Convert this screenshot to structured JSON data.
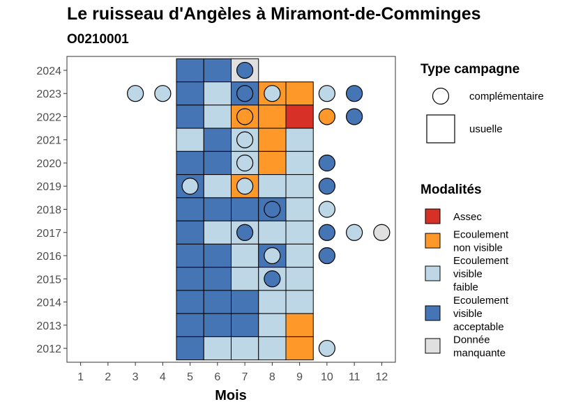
{
  "chart_data": {
    "type": "heatmap",
    "title": "Le ruisseau d'Angèles à Miramont-de-Comminges",
    "subtitle": "O0210001",
    "xlabel": "Mois",
    "ylabel": "",
    "x_ticks": [
      1,
      2,
      3,
      4,
      5,
      6,
      7,
      8,
      9,
      10,
      11,
      12
    ],
    "y_ticks": [
      2024,
      2023,
      2022,
      2021,
      2020,
      2019,
      2018,
      2017,
      2016,
      2015,
      2014,
      2013,
      2012
    ],
    "xlim": [
      0.5,
      12.5
    ],
    "ylim": [
      2011.4,
      2024.6
    ],
    "grid": false,
    "legend_position": "right",
    "categories": {
      "assec": {
        "label": "Assec",
        "color": "#D73027"
      },
      "nonvis": {
        "label": "Ecoulement non visible",
        "color": "#FE9929"
      },
      "faible": {
        "label": "Ecoulement visible faible",
        "color": "#BDD7E7"
      },
      "accept": {
        "label": "Ecoulement visible acceptable",
        "color": "#4575B4"
      },
      "manq": {
        "label": "Donnée manquante",
        "color": "#E0E0E0"
      }
    },
    "legend_campagne": {
      "title": "Type campagne",
      "items": [
        {
          "label": "complémentaire",
          "shape": "circle"
        },
        {
          "label": "usuelle",
          "shape": "square"
        }
      ]
    },
    "legend_modalites": {
      "title": "Modalités",
      "items": [
        {
          "key": "assec",
          "lines": [
            "Assec"
          ]
        },
        {
          "key": "nonvis",
          "lines": [
            "Ecoulement",
            "non visible"
          ]
        },
        {
          "key": "faible",
          "lines": [
            "Ecoulement",
            "visible",
            "faible"
          ]
        },
        {
          "key": "accept",
          "lines": [
            "Ecoulement",
            "visible",
            "acceptable"
          ]
        },
        {
          "key": "manq",
          "lines": [
            "Donnée",
            "manquante"
          ]
        }
      ]
    },
    "usuelle": [
      {
        "year": 2024,
        "month": 5,
        "c": "accept"
      },
      {
        "year": 2024,
        "month": 6,
        "c": "accept"
      },
      {
        "year": 2024,
        "month": 7,
        "c": "manq"
      },
      {
        "year": 2023,
        "month": 5,
        "c": "accept"
      },
      {
        "year": 2023,
        "month": 6,
        "c": "faible"
      },
      {
        "year": 2023,
        "month": 7,
        "c": "accept"
      },
      {
        "year": 2023,
        "month": 8,
        "c": "nonvis"
      },
      {
        "year": 2023,
        "month": 9,
        "c": "nonvis"
      },
      {
        "year": 2022,
        "month": 5,
        "c": "accept"
      },
      {
        "year": 2022,
        "month": 6,
        "c": "faible"
      },
      {
        "year": 2022,
        "month": 7,
        "c": "nonvis"
      },
      {
        "year": 2022,
        "month": 8,
        "c": "nonvis"
      },
      {
        "year": 2022,
        "month": 9,
        "c": "assec"
      },
      {
        "year": 2021,
        "month": 5,
        "c": "faible"
      },
      {
        "year": 2021,
        "month": 6,
        "c": "accept"
      },
      {
        "year": 2021,
        "month": 7,
        "c": "faible"
      },
      {
        "year": 2021,
        "month": 8,
        "c": "nonvis"
      },
      {
        "year": 2021,
        "month": 9,
        "c": "faible"
      },
      {
        "year": 2020,
        "month": 5,
        "c": "accept"
      },
      {
        "year": 2020,
        "month": 6,
        "c": "accept"
      },
      {
        "year": 2020,
        "month": 7,
        "c": "faible"
      },
      {
        "year": 2020,
        "month": 8,
        "c": "nonvis"
      },
      {
        "year": 2020,
        "month": 9,
        "c": "faible"
      },
      {
        "year": 2019,
        "month": 5,
        "c": "accept"
      },
      {
        "year": 2019,
        "month": 6,
        "c": "faible"
      },
      {
        "year": 2019,
        "month": 7,
        "c": "nonvis"
      },
      {
        "year": 2019,
        "month": 8,
        "c": "faible"
      },
      {
        "year": 2019,
        "month": 9,
        "c": "faible"
      },
      {
        "year": 2018,
        "month": 5,
        "c": "accept"
      },
      {
        "year": 2018,
        "month": 6,
        "c": "accept"
      },
      {
        "year": 2018,
        "month": 7,
        "c": "accept"
      },
      {
        "year": 2018,
        "month": 8,
        "c": "accept"
      },
      {
        "year": 2018,
        "month": 9,
        "c": "faible"
      },
      {
        "year": 2017,
        "month": 5,
        "c": "accept"
      },
      {
        "year": 2017,
        "month": 6,
        "c": "faible"
      },
      {
        "year": 2017,
        "month": 7,
        "c": "faible"
      },
      {
        "year": 2017,
        "month": 8,
        "c": "faible"
      },
      {
        "year": 2017,
        "month": 9,
        "c": "faible"
      },
      {
        "year": 2016,
        "month": 5,
        "c": "accept"
      },
      {
        "year": 2016,
        "month": 6,
        "c": "accept"
      },
      {
        "year": 2016,
        "month": 7,
        "c": "faible"
      },
      {
        "year": 2016,
        "month": 8,
        "c": "accept"
      },
      {
        "year": 2016,
        "month": 9,
        "c": "faible"
      },
      {
        "year": 2015,
        "month": 5,
        "c": "accept"
      },
      {
        "year": 2015,
        "month": 6,
        "c": "accept"
      },
      {
        "year": 2015,
        "month": 7,
        "c": "faible"
      },
      {
        "year": 2015,
        "month": 8,
        "c": "faible"
      },
      {
        "year": 2015,
        "month": 9,
        "c": "faible"
      },
      {
        "year": 2014,
        "month": 5,
        "c": "accept"
      },
      {
        "year": 2014,
        "month": 6,
        "c": "accept"
      },
      {
        "year": 2014,
        "month": 7,
        "c": "accept"
      },
      {
        "year": 2014,
        "month": 8,
        "c": "faible"
      },
      {
        "year": 2014,
        "month": 9,
        "c": "faible"
      },
      {
        "year": 2013,
        "month": 5,
        "c": "accept"
      },
      {
        "year": 2013,
        "month": 6,
        "c": "accept"
      },
      {
        "year": 2013,
        "month": 7,
        "c": "accept"
      },
      {
        "year": 2013,
        "month": 8,
        "c": "faible"
      },
      {
        "year": 2013,
        "month": 9,
        "c": "nonvis"
      },
      {
        "year": 2012,
        "month": 5,
        "c": "accept"
      },
      {
        "year": 2012,
        "month": 6,
        "c": "faible"
      },
      {
        "year": 2012,
        "month": 7,
        "c": "faible"
      },
      {
        "year": 2012,
        "month": 8,
        "c": "faible"
      },
      {
        "year": 2012,
        "month": 9,
        "c": "nonvis"
      }
    ],
    "complementaire": [
      {
        "year": 2024,
        "month": 7,
        "c": "accept"
      },
      {
        "year": 2023,
        "month": 3,
        "c": "faible"
      },
      {
        "year": 2023,
        "month": 4,
        "c": "faible"
      },
      {
        "year": 2023,
        "month": 7,
        "c": "accept"
      },
      {
        "year": 2023,
        "month": 8,
        "c": "faible"
      },
      {
        "year": 2023,
        "month": 10,
        "c": "faible"
      },
      {
        "year": 2023,
        "month": 11,
        "c": "accept"
      },
      {
        "year": 2022,
        "month": 7,
        "c": "nonvis"
      },
      {
        "year": 2022,
        "month": 10,
        "c": "nonvis"
      },
      {
        "year": 2022,
        "month": 11,
        "c": "accept"
      },
      {
        "year": 2021,
        "month": 7,
        "c": "faible"
      },
      {
        "year": 2020,
        "month": 7,
        "c": "faible"
      },
      {
        "year": 2020,
        "month": 10,
        "c": "accept"
      },
      {
        "year": 2019,
        "month": 5,
        "c": "faible"
      },
      {
        "year": 2019,
        "month": 7,
        "c": "faible"
      },
      {
        "year": 2019,
        "month": 10,
        "c": "accept"
      },
      {
        "year": 2018,
        "month": 8,
        "c": "accept"
      },
      {
        "year": 2018,
        "month": 10,
        "c": "faible"
      },
      {
        "year": 2017,
        "month": 7,
        "c": "accept"
      },
      {
        "year": 2017,
        "month": 10,
        "c": "accept"
      },
      {
        "year": 2017,
        "month": 11,
        "c": "faible"
      },
      {
        "year": 2017,
        "month": 12,
        "c": "manq"
      },
      {
        "year": 2016,
        "month": 8,
        "c": "faible"
      },
      {
        "year": 2016,
        "month": 10,
        "c": "accept"
      },
      {
        "year": 2015,
        "month": 8,
        "c": "accept"
      },
      {
        "year": 2012,
        "month": 10,
        "c": "faible"
      }
    ]
  }
}
